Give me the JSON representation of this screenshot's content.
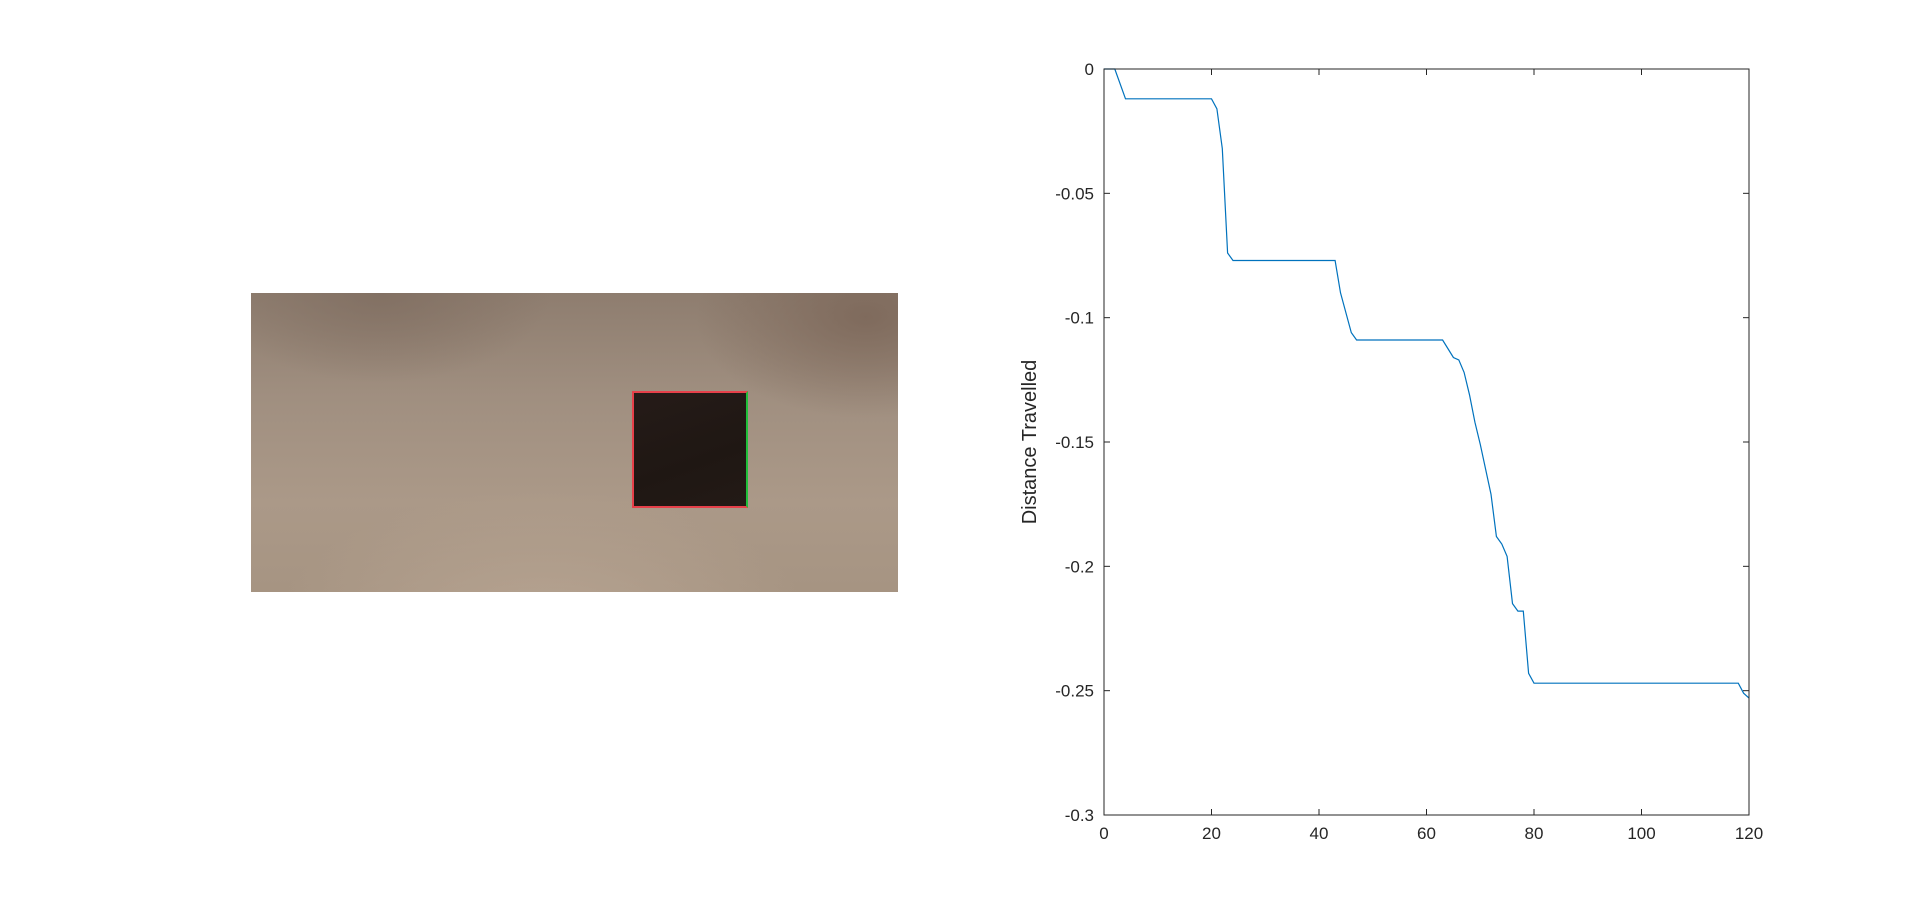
{
  "figure": {
    "photo": {
      "icon": "camera-frame-image",
      "marker_colors": {
        "edge_main": "#e6404a",
        "edge_right": "#1fbf3a"
      }
    }
  },
  "chart_data": {
    "type": "line",
    "title": "",
    "xlabel": "",
    "ylabel": "Distance Travelled",
    "xlim": [
      0,
      120
    ],
    "ylim": [
      -0.3,
      0
    ],
    "xticks": [
      "0",
      "20",
      "40",
      "60",
      "80",
      "100",
      "120"
    ],
    "yticks": [
      "0",
      "-0.05",
      "-0.1",
      "-0.15",
      "-0.2",
      "-0.25",
      "-0.3"
    ],
    "grid": false,
    "legend": "none",
    "line_color": "#0072bd",
    "series": [
      {
        "x": [
          0,
          2,
          4,
          20,
          21,
          22,
          23,
          24,
          43,
          44,
          46,
          47,
          63,
          65,
          66,
          67,
          68,
          69,
          70,
          72,
          73,
          74,
          75,
          76,
          77,
          78,
          79,
          80,
          81,
          118,
          119,
          120
        ],
        "y": [
          0,
          0,
          -0.012,
          -0.012,
          -0.016,
          -0.032,
          -0.074,
          -0.077,
          -0.077,
          -0.09,
          -0.106,
          -0.109,
          -0.109,
          -0.116,
          -0.117,
          -0.122,
          -0.131,
          -0.142,
          -0.151,
          -0.171,
          -0.188,
          -0.191,
          -0.196,
          -0.215,
          -0.218,
          -0.218,
          -0.243,
          -0.247,
          -0.247,
          -0.247,
          -0.251,
          -0.253
        ]
      }
    ]
  }
}
